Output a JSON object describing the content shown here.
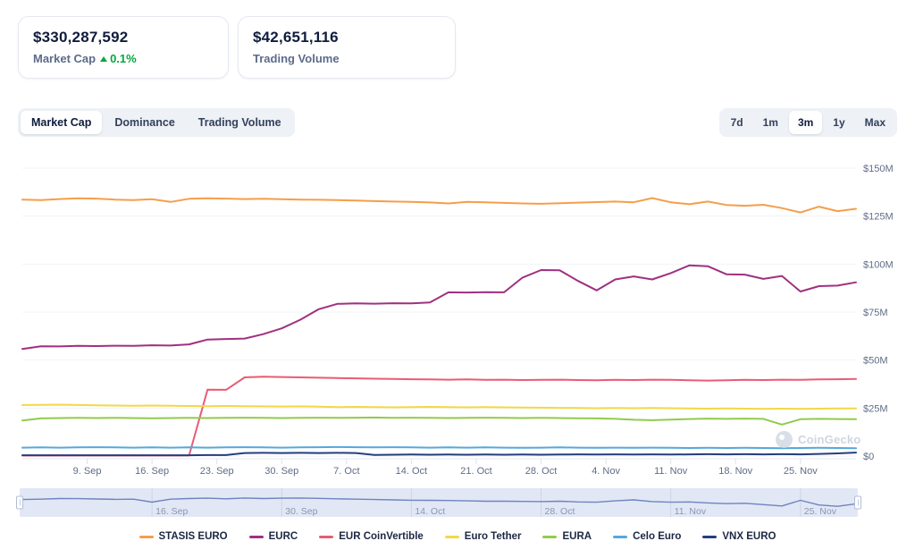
{
  "stats": {
    "market_cap": {
      "value": "$330,287,592",
      "label": "Market Cap",
      "delta": "0.1%",
      "delta_direction": "up",
      "delta_color": "#00a83e"
    },
    "trading_volume": {
      "value": "$42,651,116",
      "label": "Trading Volume"
    }
  },
  "tabs": {
    "items": [
      "Market Cap",
      "Dominance",
      "Trading Volume"
    ],
    "active": "Market Cap"
  },
  "ranges": {
    "items": [
      "7d",
      "1m",
      "3m",
      "1y",
      "Max"
    ],
    "active": "3m"
  },
  "watermark": {
    "label": "CoinGecko",
    "icon": "gecko-logo-icon"
  },
  "chart_data": {
    "type": "line",
    "title": "Euro stablecoins market cap, 3 months",
    "x_span_days": 90,
    "point_step_days": 2,
    "ylim": [
      0,
      150
    ],
    "grid": "horizontal",
    "legend_position": "bottom",
    "y_ticks": [
      {
        "label": "$0",
        "value": 0
      },
      {
        "label": "$25M",
        "value": 25
      },
      {
        "label": "$50M",
        "value": 50
      },
      {
        "label": "$75M",
        "value": 75
      },
      {
        "label": "$100M",
        "value": 100
      },
      {
        "label": "$125M",
        "value": 125
      },
      {
        "label": "$150M",
        "value": 150
      }
    ],
    "x_ticks": [
      {
        "label": "9. Sep",
        "day": 7
      },
      {
        "label": "16. Sep",
        "day": 14
      },
      {
        "label": "23. Sep",
        "day": 21
      },
      {
        "label": "30. Sep",
        "day": 28
      },
      {
        "label": "7. Oct",
        "day": 35
      },
      {
        "label": "14. Oct",
        "day": 42
      },
      {
        "label": "21. Oct",
        "day": 49
      },
      {
        "label": "28. Oct",
        "day": 56
      },
      {
        "label": "4. Nov",
        "day": 63
      },
      {
        "label": "11. Nov",
        "day": 70
      },
      {
        "label": "18. Nov",
        "day": 77
      },
      {
        "label": "25. Nov",
        "day": 84
      }
    ],
    "series": [
      {
        "name": "STASIS EURO",
        "color": "#F59E4A",
        "values": [
          133.6,
          133.3,
          133.9,
          134.3,
          134.1,
          133.6,
          133.3,
          133.8,
          132.4,
          134.0,
          134.3,
          134.1,
          133.9,
          134.0,
          133.8,
          133.6,
          133.5,
          133.3,
          133.1,
          132.8,
          132.6,
          132.4,
          132.1,
          131.6,
          132.4,
          132.2,
          131.9,
          131.6,
          131.4,
          131.7,
          132.0,
          132.3,
          132.6,
          132.2,
          134.4,
          132.2,
          131.2,
          132.6,
          130.8,
          130.4,
          130.9,
          129.2,
          126.9,
          129.9,
          127.6,
          128.8
        ]
      },
      {
        "name": "EURC",
        "color": "#A03080",
        "values": [
          55.8,
          57.2,
          57.1,
          57.4,
          57.3,
          57.5,
          57.4,
          57.7,
          57.6,
          58.2,
          60.7,
          61.0,
          61.2,
          63.5,
          66.5,
          71.0,
          76.5,
          79.3,
          79.5,
          79.4,
          79.6,
          79.5,
          80.0,
          85.3,
          85.2,
          85.4,
          85.3,
          93.0,
          96.9,
          96.8,
          91.2,
          86.3,
          92.0,
          93.6,
          92.0,
          95.3,
          99.3,
          98.9,
          94.7,
          94.5,
          92.3,
          93.8,
          85.7,
          88.5,
          88.8,
          90.5
        ]
      },
      {
        "name": "EUR CoinVertible",
        "color": "#E85C75",
        "values": [
          0.3,
          0.3,
          0.3,
          0.3,
          0.3,
          0.3,
          0.3,
          0.3,
          0.3,
          0.3,
          34.6,
          34.5,
          41.0,
          41.3,
          41.2,
          41.0,
          40.8,
          40.6,
          40.5,
          40.3,
          40.2,
          40.0,
          39.9,
          39.8,
          39.9,
          39.7,
          39.8,
          39.6,
          39.7,
          39.8,
          39.6,
          39.5,
          39.7,
          39.6,
          39.8,
          39.7,
          39.5,
          39.3,
          39.5,
          39.7,
          39.6,
          39.8,
          39.7,
          39.9,
          40.0,
          40.2
        ]
      },
      {
        "name": "Euro Tether",
        "color": "#F2D848",
        "values": [
          26.6,
          26.7,
          26.8,
          26.6,
          26.4,
          26.3,
          26.2,
          26.3,
          26.2,
          26.1,
          26.0,
          26.1,
          26.0,
          25.9,
          25.8,
          25.9,
          25.7,
          25.5,
          25.6,
          25.5,
          25.4,
          25.5,
          25.6,
          25.5,
          25.4,
          25.5,
          25.4,
          25.3,
          25.2,
          25.1,
          25.0,
          24.9,
          25.0,
          24.9,
          25.0,
          24.9,
          24.8,
          24.7,
          24.8,
          24.7,
          24.6,
          24.7,
          24.6,
          24.7,
          24.8,
          24.8
        ]
      },
      {
        "name": "EURA",
        "color": "#90CB4B",
        "values": [
          18.5,
          19.6,
          19.8,
          19.9,
          19.8,
          19.9,
          19.8,
          19.7,
          19.8,
          19.9,
          19.8,
          19.9,
          20.0,
          19.9,
          19.8,
          19.9,
          20.0,
          19.9,
          20.0,
          20.1,
          19.9,
          20.0,
          19.9,
          19.8,
          19.9,
          20.0,
          19.9,
          19.8,
          19.9,
          19.8,
          19.7,
          19.6,
          19.4,
          18.9,
          18.7,
          19.0,
          19.3,
          19.5,
          19.4,
          19.5,
          19.4,
          16.4,
          19.2,
          19.4,
          19.3,
          19.2
        ]
      },
      {
        "name": "Celo Euro",
        "color": "#55A8DC",
        "values": [
          4.4,
          4.5,
          4.4,
          4.5,
          4.6,
          4.5,
          4.4,
          4.5,
          4.4,
          4.5,
          4.4,
          4.5,
          4.6,
          4.5,
          4.4,
          4.5,
          4.6,
          4.7,
          4.6,
          4.5,
          4.6,
          4.5,
          4.4,
          4.5,
          4.4,
          4.5,
          4.4,
          4.3,
          4.4,
          4.5,
          4.4,
          4.3,
          4.4,
          4.3,
          4.4,
          4.3,
          4.2,
          4.3,
          4.2,
          4.3,
          4.2,
          4.1,
          4.2,
          4.3,
          4.2,
          4.1
        ]
      },
      {
        "name": "VNX EURO",
        "color": "#233E7F",
        "values": [
          0.4,
          0.4,
          0.4,
          0.4,
          0.4,
          0.4,
          0.4,
          0.4,
          0.4,
          0.4,
          0.5,
          0.5,
          1.6,
          1.7,
          1.6,
          1.7,
          1.6,
          1.7,
          1.6,
          0.6,
          0.7,
          0.8,
          0.7,
          0.8,
          0.7,
          0.8,
          0.7,
          0.8,
          0.7,
          0.8,
          0.9,
          0.8,
          0.9,
          0.8,
          0.9,
          0.8,
          0.9,
          1.0,
          0.9,
          1.0,
          0.9,
          1.0,
          0.9,
          1.1,
          1.4,
          1.8
        ]
      }
    ],
    "navigator": {
      "line_color": "#6e84c0",
      "labels": [
        {
          "label": "16. Sep",
          "day": 14
        },
        {
          "label": "30. Sep",
          "day": 28
        },
        {
          "label": "14. Oct",
          "day": 42
        },
        {
          "label": "28. Oct",
          "day": 56
        },
        {
          "label": "11. Nov",
          "day": 70
        },
        {
          "label": "25. Nov",
          "day": 84
        }
      ],
      "values": [
        60,
        62,
        66,
        65,
        63,
        61,
        62,
        45,
        62,
        66,
        68,
        64,
        69,
        66,
        68,
        69,
        67,
        64,
        62,
        60,
        58,
        56,
        55,
        54,
        52,
        50,
        50,
        49,
        48,
        50,
        46,
        44,
        52,
        58,
        48,
        44,
        46,
        40,
        36,
        38,
        30,
        22,
        55,
        28,
        20,
        35
      ]
    }
  }
}
